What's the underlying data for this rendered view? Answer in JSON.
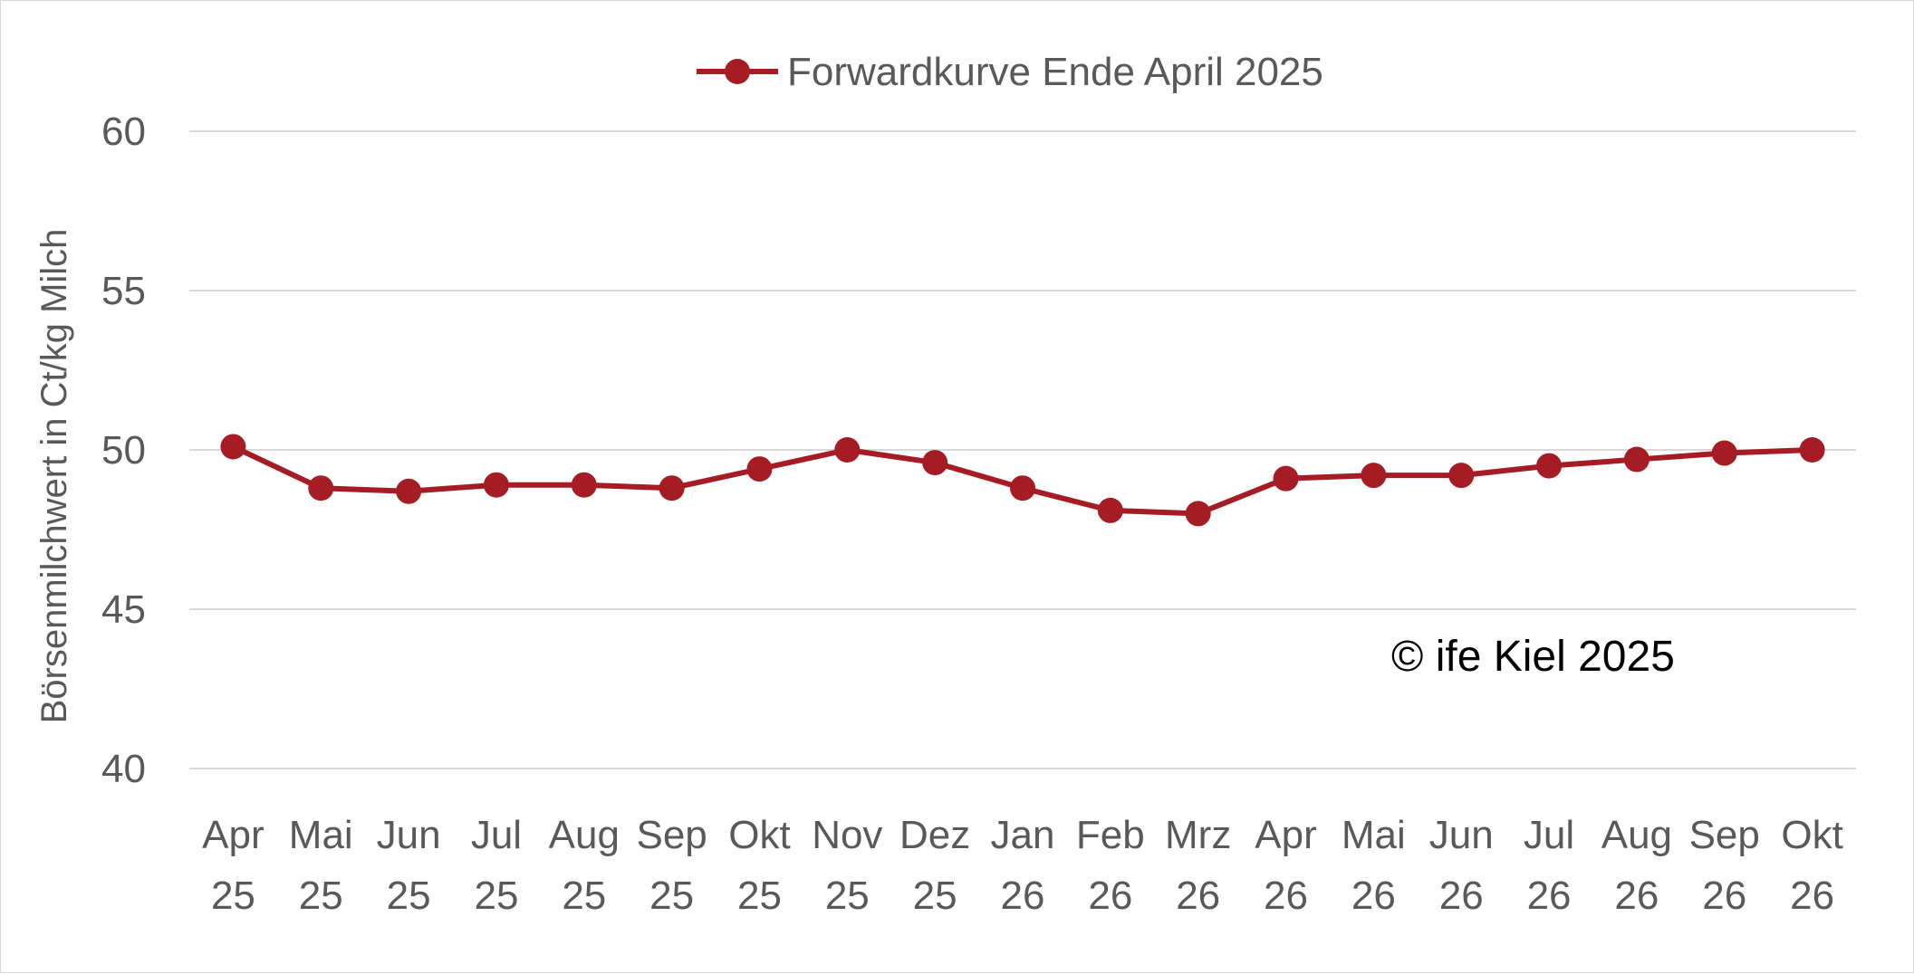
{
  "chart_data": {
    "type": "line",
    "categories": [
      "Apr 25",
      "Mai 25",
      "Jun 25",
      "Jul 25",
      "Aug 25",
      "Sep 25",
      "Okt 25",
      "Nov 25",
      "Dez 25",
      "Jan 26",
      "Feb 26",
      "Mrz 26",
      "Apr 26",
      "Mai 26",
      "Jun 26",
      "Jul 26",
      "Aug 26",
      "Sep 26",
      "Okt 26"
    ],
    "categories_lines": [
      [
        "Apr",
        "25"
      ],
      [
        "Mai",
        "25"
      ],
      [
        "Jun",
        "25"
      ],
      [
        "Jul",
        "25"
      ],
      [
        "Aug",
        "25"
      ],
      [
        "Sep",
        "25"
      ],
      [
        "Okt",
        "25"
      ],
      [
        "Nov",
        "25"
      ],
      [
        "Dez",
        "25"
      ],
      [
        "Jan",
        "26"
      ],
      [
        "Feb",
        "26"
      ],
      [
        "Mrz",
        "26"
      ],
      [
        "Apr",
        "26"
      ],
      [
        "Mai",
        "26"
      ],
      [
        "Jun",
        "26"
      ],
      [
        "Jul",
        "26"
      ],
      [
        "Aug",
        "26"
      ],
      [
        "Sep",
        "26"
      ],
      [
        "Okt",
        "26"
      ]
    ],
    "series": [
      {
        "name": "Forwardkurve Ende April 2025",
        "color": "#a51c24",
        "values": [
          50.1,
          48.8,
          48.7,
          48.9,
          48.9,
          48.8,
          49.4,
          50.0,
          49.6,
          48.8,
          48.1,
          48.0,
          49.1,
          49.2,
          49.2,
          49.5,
          49.7,
          49.9,
          50.0
        ]
      }
    ],
    "title": "",
    "xlabel": "",
    "ylabel": "Börsenmilchwert in Ct/kg Milch",
    "ylim": [
      40,
      60
    ],
    "yticks": [
      40,
      45,
      50,
      55,
      60
    ],
    "grid": true,
    "legend_position": "top-center",
    "annotation": "© ife Kiel 2025",
    "colors": {
      "gridline": "#d9d9d9",
      "text": "#595959"
    }
  }
}
